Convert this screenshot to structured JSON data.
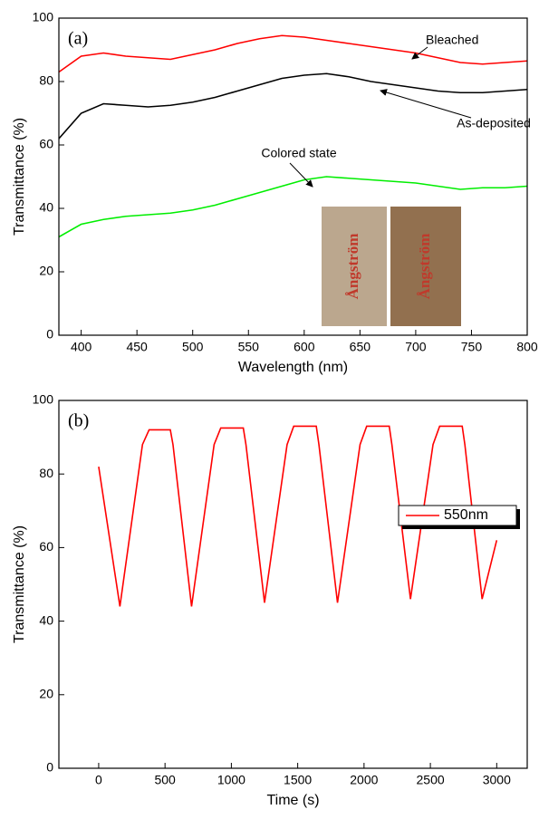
{
  "chart_data": [
    {
      "type": "line",
      "panel_label": "(a)",
      "xlabel": "Wavelength (nm)",
      "ylabel": "Transmittance (%)",
      "xlim": [
        380,
        800
      ],
      "ylim": [
        0,
        100
      ],
      "xticks": [
        400,
        450,
        500,
        550,
        600,
        650,
        700,
        750,
        800
      ],
      "yticks": [
        0,
        20,
        40,
        60,
        80,
        100
      ],
      "x": [
        380,
        400,
        420,
        440,
        460,
        480,
        500,
        520,
        540,
        560,
        580,
        600,
        620,
        640,
        660,
        680,
        700,
        720,
        740,
        760,
        780,
        800
      ],
      "series": [
        {
          "name": "Bleached",
          "color": "#ff0000",
          "values": [
            83,
            88,
            89,
            88,
            87.5,
            87,
            88.5,
            90,
            92,
            93.5,
            94.5,
            94,
            93,
            92,
            91,
            90,
            89,
            87.5,
            86,
            85.5,
            86,
            86.5
          ]
        },
        {
          "name": "As-deposited",
          "color": "#000000",
          "values": [
            62,
            70,
            73,
            72.5,
            72,
            72.5,
            73.5,
            75,
            77,
            79,
            81,
            82,
            82.5,
            81.5,
            80,
            79,
            78,
            77,
            76.5,
            76.5,
            77,
            77.5
          ]
        },
        {
          "name": "Colored state",
          "color": "#00ee00",
          "values": [
            31,
            35,
            36.5,
            37.5,
            38,
            38.5,
            39.5,
            41,
            43,
            45,
            47,
            49,
            50,
            49.5,
            49,
            48.5,
            48,
            47,
            46,
            46.5,
            46.5,
            47
          ]
        }
      ],
      "inset_labels": [
        "Ångström",
        "Ångström"
      ]
    },
    {
      "type": "line",
      "panel_label": "(b)",
      "xlabel": "Time (s)",
      "ylabel": "Transmittance (%)",
      "xlim": [
        -300,
        3230
      ],
      "ylim": [
        0,
        100
      ],
      "xticks": [
        0,
        500,
        1000,
        1500,
        2000,
        2500,
        3000
      ],
      "yticks": [
        0,
        20,
        40,
        60,
        80,
        100
      ],
      "legend": "right",
      "x": [
        0,
        160,
        330,
        380,
        540,
        560,
        700,
        870,
        920,
        1090,
        1110,
        1250,
        1420,
        1470,
        1640,
        1660,
        1800,
        1970,
        2020,
        2190,
        2210,
        2350,
        2520,
        2570,
        2740,
        2760,
        2890,
        3000
      ],
      "series": [
        {
          "name": "550nm",
          "color": "#ff0000",
          "values": [
            82,
            44,
            88,
            92,
            92,
            88,
            44,
            88,
            92.5,
            92.5,
            88,
            45,
            88,
            93,
            93,
            88,
            45,
            88,
            93,
            93,
            88,
            46,
            88,
            93,
            93,
            88,
            46,
            62
          ]
        }
      ]
    }
  ]
}
